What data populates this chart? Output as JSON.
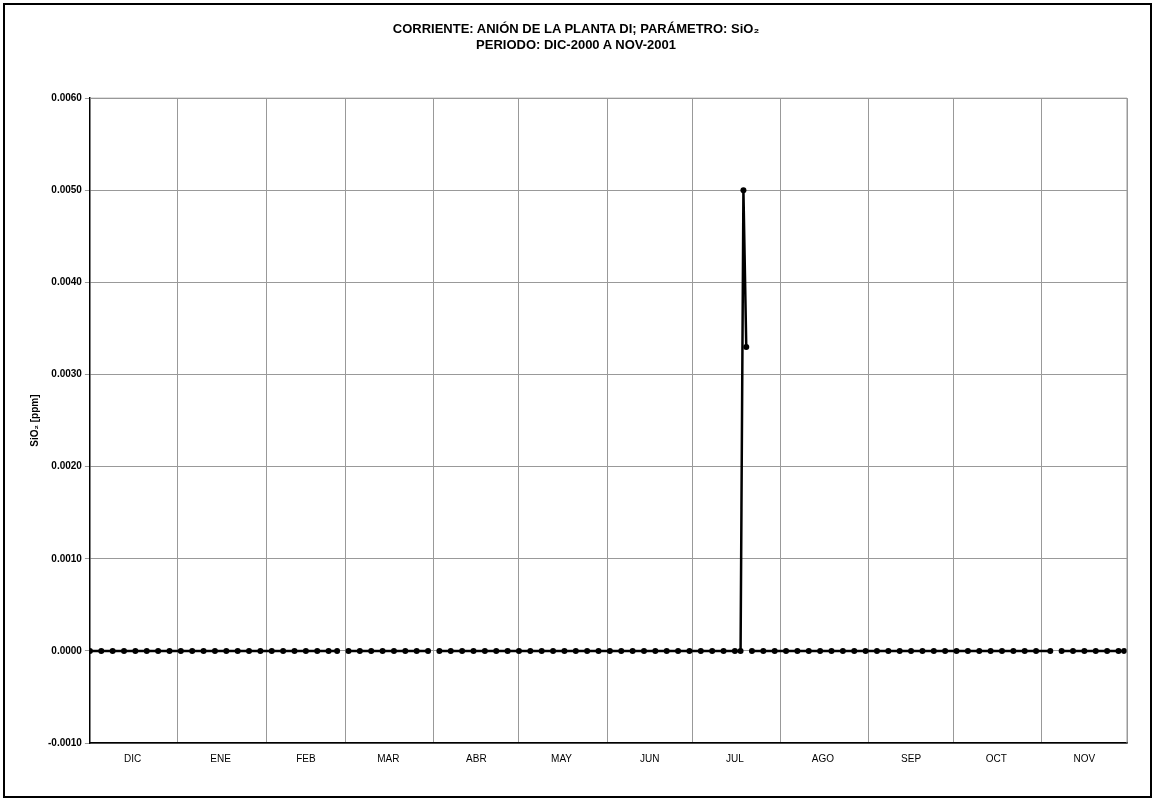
{
  "chart_data": {
    "type": "line",
    "title": [
      "CORRIENTE: ANIÓN DE LA PLANTA DI; PARÁMETRO: SiO₂",
      "PERIODO: DIC-2000 A NOV-2001"
    ],
    "ylabel": "SiO₂ [ppm]",
    "x": [
      "2000-12-01",
      "2000-12-05",
      "2000-12-09",
      "2000-12-13",
      "2000-12-17",
      "2000-12-21",
      "2000-12-25",
      "2000-12-29",
      "2001-01-02",
      "2001-01-06",
      "2001-01-10",
      "2001-01-14",
      "2001-01-18",
      "2001-01-22",
      "2001-01-26",
      "2001-01-30",
      "2001-02-03",
      "2001-02-07",
      "2001-02-11",
      "2001-02-15",
      "2001-02-19",
      "2001-02-23",
      "2001-02-26",
      "2001-02-28",
      "2001-03-02",
      "2001-03-06",
      "2001-03-10",
      "2001-03-14",
      "2001-03-18",
      "2001-03-22",
      "2001-03-26",
      "2001-03-30",
      "2001-04-01",
      "2001-04-03",
      "2001-04-07",
      "2001-04-11",
      "2001-04-15",
      "2001-04-19",
      "2001-04-23",
      "2001-04-27",
      "2001-05-01",
      "2001-05-05",
      "2001-05-09",
      "2001-05-13",
      "2001-05-17",
      "2001-05-21",
      "2001-05-25",
      "2001-05-29",
      "2001-06-02",
      "2001-06-06",
      "2001-06-10",
      "2001-06-14",
      "2001-06-18",
      "2001-06-22",
      "2001-06-26",
      "2001-06-30",
      "2001-07-04",
      "2001-07-08",
      "2001-07-12",
      "2001-07-16",
      "2001-07-18",
      "2001-07-19",
      "2001-07-20",
      "2001-07-21",
      "2001-07-22",
      "2001-07-26",
      "2001-07-30",
      "2001-08-03",
      "2001-08-07",
      "2001-08-11",
      "2001-08-15",
      "2001-08-19",
      "2001-08-23",
      "2001-08-27",
      "2001-08-31",
      "2001-09-04",
      "2001-09-08",
      "2001-09-12",
      "2001-09-16",
      "2001-09-20",
      "2001-09-24",
      "2001-09-28",
      "2001-10-02",
      "2001-10-06",
      "2001-10-10",
      "2001-10-14",
      "2001-10-18",
      "2001-10-22",
      "2001-10-26",
      "2001-10-30",
      "2001-11-04",
      "2001-11-06",
      "2001-11-08",
      "2001-11-12",
      "2001-11-16",
      "2001-11-20",
      "2001-11-24",
      "2001-11-28",
      "2001-11-30"
    ],
    "series": [
      {
        "color": "#000000",
        "values": [
          0,
          0,
          0,
          0,
          0,
          0,
          0,
          0,
          0,
          0,
          0,
          0,
          0,
          0,
          0,
          0,
          0,
          0,
          0,
          0,
          0,
          0,
          0,
          null,
          0,
          0,
          0,
          0,
          0,
          0,
          0,
          0,
          null,
          0,
          0,
          0,
          0,
          0,
          0,
          0,
          0,
          0,
          0,
          0,
          0,
          0,
          0,
          0,
          0,
          0,
          0,
          0,
          0,
          0,
          0,
          0,
          0,
          0,
          0,
          0,
          0,
          0.005,
          0.0033,
          null,
          0,
          0,
          0,
          0,
          0,
          0,
          0,
          0,
          0,
          0,
          0,
          0,
          0,
          0,
          0,
          0,
          0,
          0,
          0,
          0,
          0,
          0,
          0,
          0,
          0,
          0,
          0,
          null,
          0,
          0,
          0,
          0,
          0,
          0,
          0
        ]
      }
    ],
    "xlim": [
      "2000-12-01",
      "2001-12-01"
    ],
    "xticks": [
      {
        "value": "2000-12-01",
        "label": null
      },
      {
        "value": "2000-12-16",
        "label": "DIC"
      },
      {
        "value": "2001-01-01",
        "label": null
      },
      {
        "value": "2001-01-16",
        "label": "ENE"
      },
      {
        "value": "2001-02-01",
        "label": null
      },
      {
        "value": "2001-02-15",
        "label": "FEB"
      },
      {
        "value": "2001-03-01",
        "label": null
      },
      {
        "value": "2001-03-16",
        "label": "MAR"
      },
      {
        "value": "2001-04-01",
        "label": null
      },
      {
        "value": "2001-04-16",
        "label": "ABR"
      },
      {
        "value": "2001-05-01",
        "label": null
      },
      {
        "value": "2001-05-16",
        "label": "MAY"
      },
      {
        "value": "2001-06-01",
        "label": null
      },
      {
        "value": "2001-06-16",
        "label": "JUN"
      },
      {
        "value": "2001-07-01",
        "label": null
      },
      {
        "value": "2001-07-16",
        "label": "JUL"
      },
      {
        "value": "2001-08-01",
        "label": null
      },
      {
        "value": "2001-08-16",
        "label": "AGO"
      },
      {
        "value": "2001-09-01",
        "label": null
      },
      {
        "value": "2001-09-16",
        "label": "SEP"
      },
      {
        "value": "2001-10-01",
        "label": null
      },
      {
        "value": "2001-10-16",
        "label": "OCT"
      },
      {
        "value": "2001-11-01",
        "label": null
      },
      {
        "value": "2001-11-16",
        "label": "NOV"
      },
      {
        "value": "2001-12-01",
        "label": null
      }
    ],
    "ylim": [
      -0.001,
      0.006
    ],
    "yticks": [
      {
        "value": -0.001,
        "label": "-0.0010"
      },
      {
        "value": 0,
        "label": "0.0000"
      },
      {
        "value": 0.001,
        "label": "0.0010"
      },
      {
        "value": 0.002,
        "label": "0.0020"
      },
      {
        "value": 0.003,
        "label": "0.0030"
      },
      {
        "value": 0.004,
        "label": "0.0040"
      },
      {
        "value": 0.005,
        "label": "0.0050"
      },
      {
        "value": 0.006,
        "label": "0.0060"
      }
    ],
    "grid": true,
    "marker": "circle",
    "line_style": "solid",
    "legend": false
  }
}
